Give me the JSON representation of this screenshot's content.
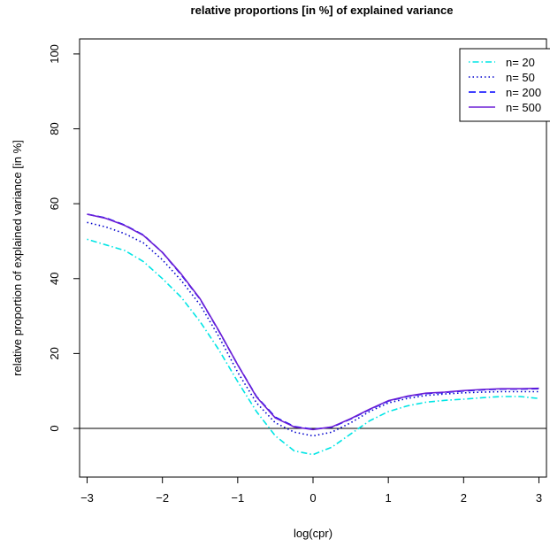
{
  "chart_data": {
    "type": "line",
    "title": "relative proportions [in %] of explained variance",
    "xlabel": "log(cpr)",
    "ylabel": "relative proportion of explained variance [in %]",
    "xlim": [
      -3.1,
      3.1
    ],
    "ylim": [
      -13,
      104
    ],
    "x_ticks": [
      -3,
      -2,
      -1,
      0,
      1,
      2,
      3
    ],
    "x_tick_labels": [
      "−3",
      "−2",
      "−1",
      "0",
      "1",
      "2",
      "3"
    ],
    "y_ticks": [
      0,
      20,
      40,
      60,
      80,
      100
    ],
    "y_tick_labels": [
      "0",
      "20",
      "40",
      "60",
      "80",
      "100"
    ],
    "reference_line": {
      "y": 0
    },
    "legend_position": "top-right",
    "x": [
      -3,
      -2.75,
      -2.5,
      -2.25,
      -2,
      -1.75,
      -1.5,
      -1.25,
      -1,
      -0.75,
      -0.5,
      -0.25,
      0,
      0.25,
      0.5,
      0.75,
      1,
      1.25,
      1.5,
      1.75,
      2,
      2.25,
      2.5,
      2.75,
      3
    ],
    "series": [
      {
        "name": "n= 20",
        "color": "#00e5e5",
        "dash": "dotdash",
        "values": [
          50.5,
          49,
          47.5,
          44.5,
          40,
          35,
          28.5,
          21,
          12.5,
          4.5,
          -2,
          -6,
          -7,
          -5,
          -1.5,
          2,
          4.5,
          6,
          7,
          7.5,
          7.8,
          8.2,
          8.5,
          8.5,
          8
        ]
      },
      {
        "name": "n= 50",
        "color": "#0000cd",
        "dash": "dotted",
        "values": [
          55,
          53.8,
          52,
          49.5,
          45,
          39.5,
          33,
          24.5,
          15,
          6.8,
          1.5,
          -1,
          -2,
          -1,
          1.5,
          4.5,
          6.8,
          8,
          8.8,
          9.2,
          9.5,
          9.7,
          9.8,
          9.8,
          9.8
        ]
      },
      {
        "name": "n= 200",
        "color": "#0000ff",
        "dash": "dashed",
        "values": [
          57.2,
          56.2,
          54.3,
          51.6,
          47,
          41,
          34.5,
          26,
          17,
          8.5,
          3,
          0.5,
          -0.2,
          0.3,
          2.5,
          5,
          7.3,
          8.5,
          9.3,
          9.6,
          10,
          10.3,
          10.5,
          10.5,
          10.6
        ]
      },
      {
        "name": "n= 500",
        "color": "#6b1fd6",
        "dash": "solid",
        "values": [
          57.2,
          56.1,
          54.2,
          51.5,
          47,
          41.2,
          34.6,
          26.1,
          17,
          8.4,
          2.8,
          0.4,
          -0.3,
          0.4,
          2.6,
          5.1,
          7.4,
          8.6,
          9.4,
          9.7,
          10.1,
          10.4,
          10.6,
          10.6,
          10.7
        ]
      }
    ]
  }
}
